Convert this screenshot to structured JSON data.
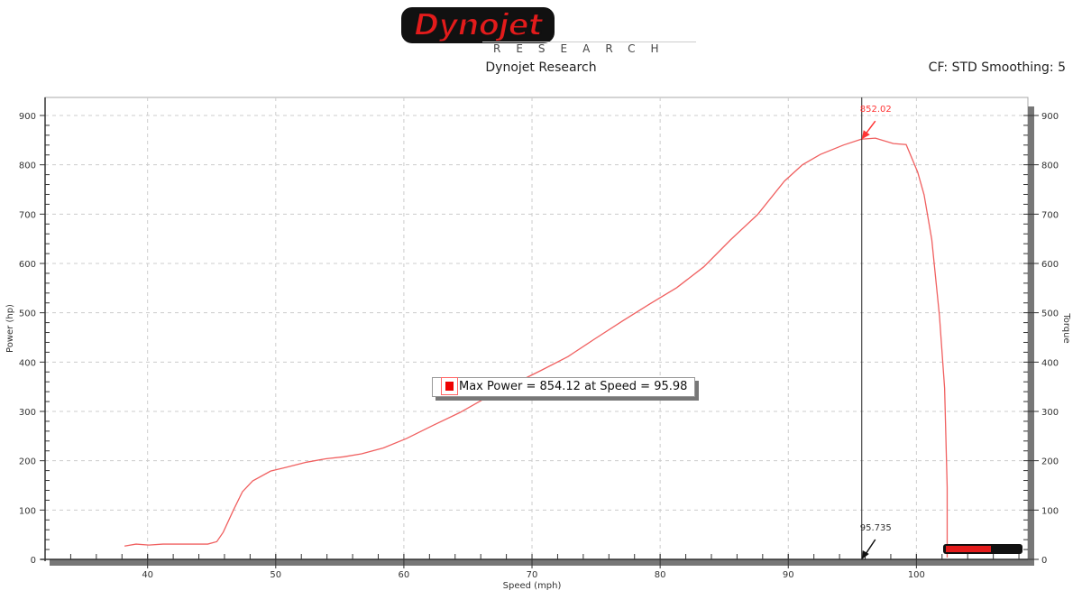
{
  "header": {
    "logo_text": "Dynojet",
    "logo_subtext": "RESEARCH",
    "title": "Dynojet Research",
    "cf_text": "CF: STD Smoothing: 5"
  },
  "colors": {
    "series": "#f06060",
    "cursor": "#222222",
    "annotation": "#ff3333",
    "axis_bar": "#777777"
  },
  "chart_data": {
    "type": "line",
    "xlabel": "Speed (mph)",
    "ylabel": "Power (hp)",
    "y2label": "Torque",
    "xlim": [
      32,
      108.7
    ],
    "ylim": [
      0,
      900
    ],
    "x_ticks": [
      40,
      50,
      60,
      70,
      80,
      90,
      100
    ],
    "y_ticks": [
      0,
      100,
      200,
      300,
      400,
      500,
      600,
      700,
      800,
      900
    ],
    "grid": true,
    "series": [
      {
        "x": [
          38.2,
          39.1,
          40.1,
          41.2,
          44.7,
          45.4,
          45.9,
          46.7,
          47.4,
          48.2,
          49.6,
          50.7,
          52.4,
          53.9,
          55.3,
          56.7,
          58.4,
          60.2,
          62.3,
          64.4,
          66.5,
          68.6,
          70.7,
          72.8,
          74.9,
          77.1,
          79.2,
          81.3,
          83.4,
          85.5,
          87.6,
          89.7,
          91.1,
          92.5,
          94.3,
          95.7,
          96.8,
          98.2,
          99.2,
          100.1,
          100.6,
          101.2,
          101.8,
          102.2,
          102.4,
          102.4
        ],
        "y": [
          27,
          31,
          29,
          31,
          31,
          36,
          55,
          100,
          137,
          159,
          179,
          186,
          197,
          204,
          208,
          214,
          226,
          245,
          272,
          298,
          329,
          356,
          383,
          411,
          447,
          484,
          518,
          551,
          593,
          648,
          699,
          767,
          800,
          821,
          840,
          852,
          854,
          843,
          841,
          785,
          739,
          648,
          493,
          347,
          146,
          4
        ]
      }
    ],
    "cursor": {
      "x_label": "95.735",
      "y_label": "852.02",
      "x": 95.735,
      "y": 852.02
    },
    "legend_text": "Max Power = 854.12 at Speed = 95.98"
  }
}
